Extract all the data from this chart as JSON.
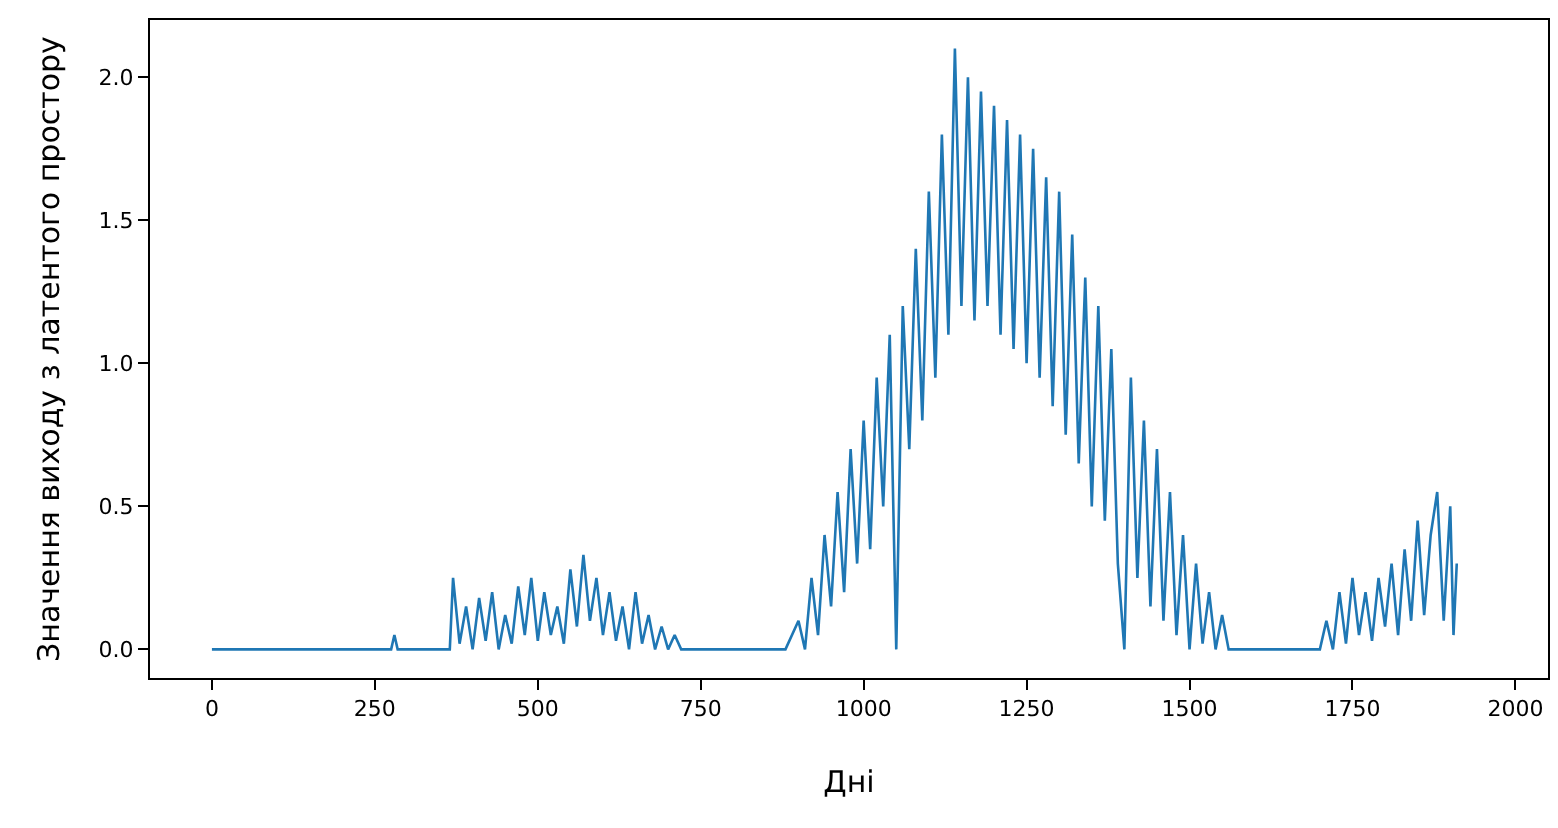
{
  "chart_data": {
    "type": "line",
    "xlabel": "Дні",
    "ylabel": "Значення виходу з латентого простору",
    "xlim": [
      -95,
      2050
    ],
    "ylim": [
      -0.1,
      2.2
    ],
    "xticks": [
      0,
      250,
      500,
      750,
      1000,
      1250,
      1500,
      1750,
      2000
    ],
    "yticks": [
      {
        "value": 0,
        "label": "0.0"
      },
      {
        "value": 0.5,
        "label": "0.5"
      },
      {
        "value": 1,
        "label": "1.0"
      },
      {
        "value": 1.5,
        "label": "1.5"
      },
      {
        "value": 2,
        "label": "2.0"
      }
    ],
    "legend": false,
    "series": [
      {
        "color": "#1f77b4",
        "x": [
          0,
          275,
          280,
          285,
          365,
          370,
          380,
          390,
          400,
          410,
          420,
          430,
          440,
          450,
          460,
          470,
          480,
          490,
          500,
          510,
          520,
          530,
          540,
          550,
          560,
          570,
          580,
          590,
          600,
          610,
          620,
          630,
          640,
          650,
          660,
          670,
          680,
          690,
          700,
          710,
          720,
          880,
          900,
          910,
          920,
          930,
          940,
          950,
          960,
          970,
          980,
          990,
          1000,
          1010,
          1020,
          1030,
          1040,
          1050,
          1060,
          1070,
          1080,
          1090,
          1100,
          1110,
          1120,
          1130,
          1140,
          1150,
          1160,
          1170,
          1180,
          1190,
          1200,
          1210,
          1220,
          1230,
          1240,
          1250,
          1260,
          1270,
          1280,
          1290,
          1300,
          1310,
          1320,
          1330,
          1340,
          1350,
          1360,
          1370,
          1380,
          1390,
          1400,
          1410,
          1420,
          1430,
          1440,
          1450,
          1460,
          1470,
          1480,
          1490,
          1500,
          1510,
          1520,
          1530,
          1540,
          1550,
          1560,
          1700,
          1710,
          1720,
          1730,
          1740,
          1750,
          1760,
          1770,
          1780,
          1790,
          1800,
          1810,
          1820,
          1830,
          1840,
          1850,
          1860,
          1870,
          1880,
          1890,
          1900,
          1905,
          1910
        ],
        "values": [
          0,
          0,
          0.05,
          0,
          0,
          0.25,
          0.02,
          0.15,
          0,
          0.18,
          0.03,
          0.2,
          0,
          0.12,
          0.02,
          0.22,
          0.05,
          0.25,
          0.03,
          0.2,
          0.05,
          0.15,
          0.02,
          0.28,
          0.08,
          0.33,
          0.1,
          0.25,
          0.05,
          0.2,
          0.03,
          0.15,
          0,
          0.2,
          0.02,
          0.12,
          0,
          0.08,
          0,
          0.05,
          0,
          0,
          0.1,
          0,
          0.25,
          0.05,
          0.4,
          0.15,
          0.55,
          0.2,
          0.7,
          0.3,
          0.8,
          0.35,
          0.95,
          0.5,
          1.1,
          0,
          1.2,
          0.7,
          1.4,
          0.8,
          1.6,
          0.95,
          1.8,
          1.1,
          2.1,
          1.2,
          2.0,
          1.15,
          1.95,
          1.2,
          1.9,
          1.1,
          1.85,
          1.05,
          1.8,
          1.0,
          1.75,
          0.95,
          1.65,
          0.85,
          1.6,
          0.75,
          1.45,
          0.65,
          1.3,
          0.5,
          1.2,
          0.45,
          1.05,
          0.3,
          0,
          0.95,
          0.25,
          0.8,
          0.15,
          0.7,
          0.1,
          0.55,
          0.05,
          0.4,
          0,
          0.3,
          0.02,
          0.2,
          0,
          0.12,
          0,
          0,
          0.1,
          0,
          0.2,
          0.02,
          0.25,
          0.05,
          0.2,
          0.03,
          0.25,
          0.08,
          0.3,
          0.05,
          0.35,
          0.1,
          0.45,
          0.12,
          0.4,
          0.55,
          0.1,
          0.5,
          0.05,
          0.3
        ]
      }
    ]
  }
}
